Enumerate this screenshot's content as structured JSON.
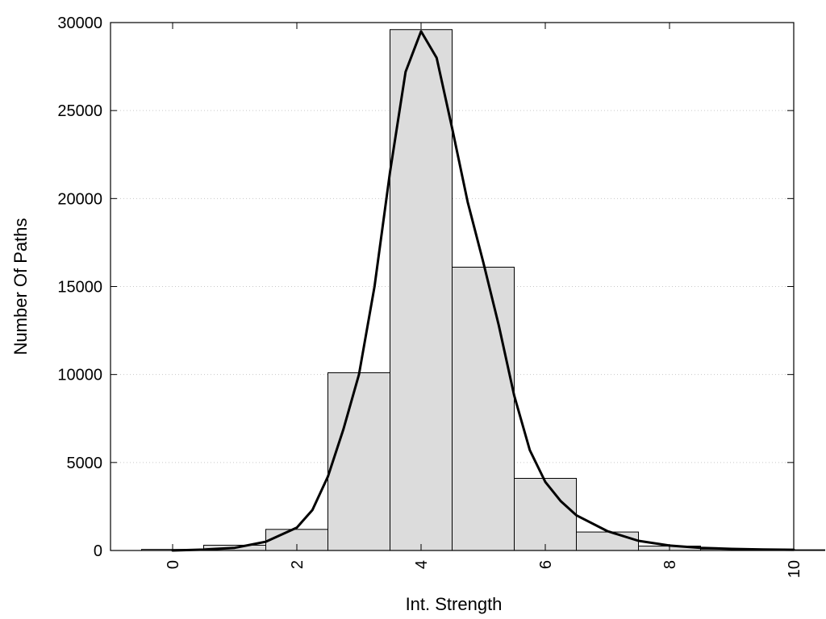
{
  "chart_data": {
    "type": "bar",
    "title": "",
    "xlabel": "Int. Strength",
    "ylabel": "Number Of Paths",
    "xlim": [
      -1,
      10
    ],
    "ylim": [
      0,
      30000
    ],
    "x_ticks": [
      0,
      2,
      4,
      6,
      8,
      10
    ],
    "y_ticks": [
      0,
      5000,
      10000,
      15000,
      20000,
      25000,
      30000
    ],
    "grid": "horizontal-dotted",
    "bin_width": 1,
    "bar_color": "#dcdcdc",
    "bar_edge_color": "#000000",
    "line_color": "#000000",
    "bins": [
      {
        "x": 0,
        "value": 60
      },
      {
        "x": 1,
        "value": 300
      },
      {
        "x": 2,
        "value": 1200
      },
      {
        "x": 3,
        "value": 10100
      },
      {
        "x": 4,
        "value": 29600
      },
      {
        "x": 5,
        "value": 16100
      },
      {
        "x": 6,
        "value": 4100
      },
      {
        "x": 7,
        "value": 1050
      },
      {
        "x": 8,
        "value": 250
      },
      {
        "x": 9,
        "value": 80
      },
      {
        "x": 10,
        "value": 40
      }
    ],
    "curve": {
      "x": [
        0,
        0.5,
        1,
        1.5,
        2,
        2.25,
        2.5,
        2.75,
        3,
        3.25,
        3.5,
        3.75,
        4,
        4.25,
        4.5,
        4.75,
        5,
        5.25,
        5.5,
        5.75,
        6,
        6.25,
        6.5,
        7,
        7.5,
        8,
        8.5,
        9,
        9.5,
        10
      ],
      "y": [
        0,
        50,
        150,
        500,
        1300,
        2300,
        4200,
        6900,
        10000,
        15000,
        21500,
        27200,
        29500,
        28000,
        24000,
        19800,
        16400,
        12800,
        8800,
        5700,
        3900,
        2800,
        2000,
        1100,
        550,
        280,
        150,
        90,
        60,
        40
      ]
    }
  }
}
